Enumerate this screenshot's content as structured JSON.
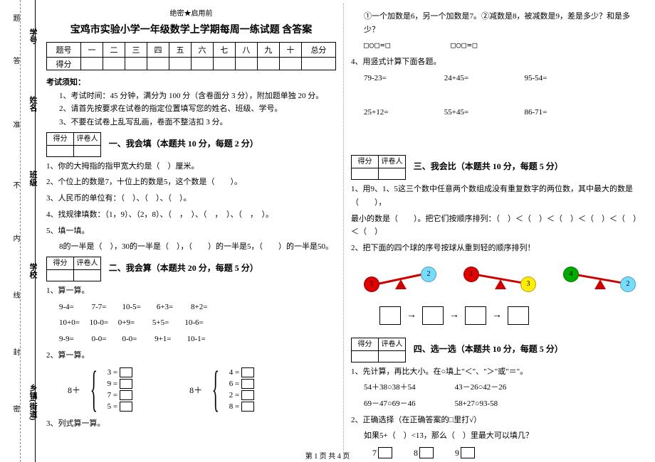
{
  "sidebar": {
    "labels": [
      "学号",
      "姓名",
      "班级",
      "学校",
      "乡镇(街道)"
    ],
    "inner": [
      "密",
      "封",
      "线",
      "内",
      "不",
      "准",
      "答",
      "题"
    ]
  },
  "header": {
    "secret": "绝密★启用前",
    "title": "宝鸡市实验小学一年级数学上学期每周一练试题 含答案"
  },
  "scoreTable": {
    "row1": [
      "题号",
      "一",
      "二",
      "三",
      "四",
      "五",
      "六",
      "七",
      "八",
      "九",
      "十",
      "总分"
    ],
    "row2": [
      "得分",
      "",
      "",
      "",
      "",
      "",
      "",
      "",
      "",
      "",
      "",
      ""
    ]
  },
  "notice": {
    "title": "考试须知：",
    "items": [
      "1、考试时间：45 分钟，满分为 100 分（含卷面分 3 分），附加题单独 20 分。",
      "2、请首先按要求在试卷的指定位置填写您的姓名、班级、学号。",
      "3、不要在试卷上乱写乱画，卷面不整洁扣 3 分。"
    ]
  },
  "boxLabels": {
    "score": "得分",
    "marker": "评卷人"
  },
  "sec1": {
    "title": "一、我会填（本题共 10 分，每题 2 分）",
    "q1": "1、你的大拇指的指甲宽大约是（　）厘米。",
    "q2": "2、个位上的数是7，十位上的数是5，这个数是（　　）。",
    "q3": "3、人民币的单位有：（　）、（　）、（　）。",
    "q4": "4、找规律填数：（1，9）、（2，8）、（　，　）、（　，　）、（　，　）。",
    "q5a": "5、填一填。",
    "q5b": "8的一半是（　），30的一半是（　），（　　）的一半是5，（　　）的一半是50。"
  },
  "sec2": {
    "title": "二、我会算（本题共 20 分，每题 5 分）",
    "q1": "1、算一算。",
    "rows": [
      "9-4=　　 7-7=　　10-5=　　6+3=　　 8+2=",
      "10+0=　 10-0=　 0+9=　　 5+5=　　10-6=",
      "9-9=　　 0-0=　　0-0=　　 9+1=　　10-1="
    ],
    "q2": "2、算一算。",
    "left": {
      "pre": "8＋",
      "items": [
        "3 =",
        "9 =",
        "7 =",
        "5 ="
      ]
    },
    "right": {
      "pre": "8＋",
      "items": [
        "4 =",
        "6 =",
        "2 =",
        "8 ="
      ]
    },
    "q3": "3、列式算一算。"
  },
  "colR": {
    "q_top": "①一个加数是6，另一个加数是7。②减数是8，被减数是9，差是多少？和是多少？",
    "sqline": "□○□=□　　　　　　　□○□=□",
    "q4": "4、用竖式计算下面各题。",
    "calc1": [
      "79-23=",
      "24+45=",
      "95-54="
    ],
    "calc2": [
      "25+12=",
      "55+45=",
      "86-71="
    ]
  },
  "sec3": {
    "title": "三、我会比（本题共 10 分，每题 5 分）",
    "q1a": "1、用9、1、5这三个数中任意两个数组成没有重复数字的两位数，其中最大的数是（　　），",
    "q1b": "最小的数是（　　）。把它们按顺序排列：（　）＜（　）＜（　）＜（　）＜（　）＜（　）",
    "q2": "2、把下面的四个球的序号按球从重到轻的顺序排列！",
    "balls": [
      {
        "leftNum": "1",
        "leftColor": "#d00",
        "rightNum": "2",
        "rightColor": "#7df",
        "tilt": -12
      },
      {
        "leftNum": "1",
        "leftColor": "#d00",
        "rightNum": "3",
        "rightColor": "#fe0",
        "tilt": 10
      },
      {
        "leftNum": "4",
        "leftColor": "#0a0",
        "rightNum": "2",
        "rightColor": "#7df",
        "tilt": 10
      }
    ]
  },
  "sec4": {
    "title": "四、选一选（本题共 10 分，每题 5 分）",
    "q1": "1、先计算，再比大小。在○填上\"＜\"、\"＞\"或\"＝\"。",
    "rows": [
      "54＋38○38＋54　　　　　43－26○42－26",
      "69－47○69－46　　　　　58+27○93-58"
    ],
    "q2a": "2、正确选择（在正确答案的□里打√）",
    "q2b": "如果5+（　）<13，那么（　）里最大可以填几？",
    "opts": [
      "7",
      "8",
      "9"
    ]
  },
  "footer": "第 1 页 共 4 页"
}
